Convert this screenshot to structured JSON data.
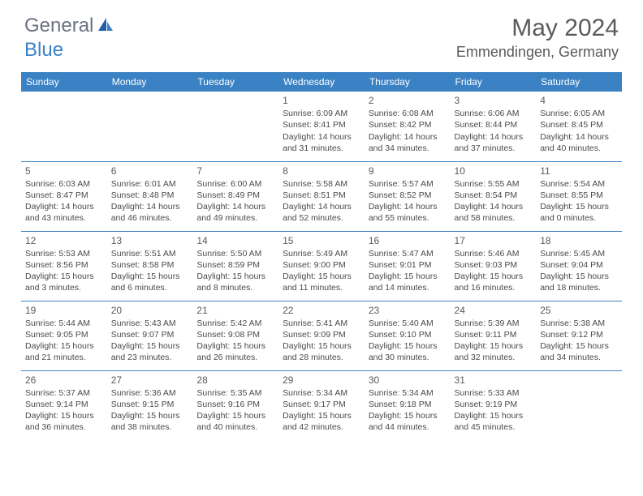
{
  "brand": {
    "part1": "General",
    "part2": "Blue"
  },
  "title": "May 2024",
  "location": "Emmendingen, Germany",
  "colors": {
    "header_bg": "#3b82c4",
    "header_text": "#ffffff",
    "border": "#3b82c4",
    "body_text": "#4a4a4a",
    "title_text": "#5a5a5a",
    "background": "#ffffff"
  },
  "weekdays": [
    "Sunday",
    "Monday",
    "Tuesday",
    "Wednesday",
    "Thursday",
    "Friday",
    "Saturday"
  ],
  "weeks": [
    [
      null,
      null,
      null,
      {
        "d": "1",
        "sr": "6:09 AM",
        "ss": "8:41 PM",
        "dl": "14 hours and 31 minutes."
      },
      {
        "d": "2",
        "sr": "6:08 AM",
        "ss": "8:42 PM",
        "dl": "14 hours and 34 minutes."
      },
      {
        "d": "3",
        "sr": "6:06 AM",
        "ss": "8:44 PM",
        "dl": "14 hours and 37 minutes."
      },
      {
        "d": "4",
        "sr": "6:05 AM",
        "ss": "8:45 PM",
        "dl": "14 hours and 40 minutes."
      }
    ],
    [
      {
        "d": "5",
        "sr": "6:03 AM",
        "ss": "8:47 PM",
        "dl": "14 hours and 43 minutes."
      },
      {
        "d": "6",
        "sr": "6:01 AM",
        "ss": "8:48 PM",
        "dl": "14 hours and 46 minutes."
      },
      {
        "d": "7",
        "sr": "6:00 AM",
        "ss": "8:49 PM",
        "dl": "14 hours and 49 minutes."
      },
      {
        "d": "8",
        "sr": "5:58 AM",
        "ss": "8:51 PM",
        "dl": "14 hours and 52 minutes."
      },
      {
        "d": "9",
        "sr": "5:57 AM",
        "ss": "8:52 PM",
        "dl": "14 hours and 55 minutes."
      },
      {
        "d": "10",
        "sr": "5:55 AM",
        "ss": "8:54 PM",
        "dl": "14 hours and 58 minutes."
      },
      {
        "d": "11",
        "sr": "5:54 AM",
        "ss": "8:55 PM",
        "dl": "15 hours and 0 minutes."
      }
    ],
    [
      {
        "d": "12",
        "sr": "5:53 AM",
        "ss": "8:56 PM",
        "dl": "15 hours and 3 minutes."
      },
      {
        "d": "13",
        "sr": "5:51 AM",
        "ss": "8:58 PM",
        "dl": "15 hours and 6 minutes."
      },
      {
        "d": "14",
        "sr": "5:50 AM",
        "ss": "8:59 PM",
        "dl": "15 hours and 8 minutes."
      },
      {
        "d": "15",
        "sr": "5:49 AM",
        "ss": "9:00 PM",
        "dl": "15 hours and 11 minutes."
      },
      {
        "d": "16",
        "sr": "5:47 AM",
        "ss": "9:01 PM",
        "dl": "15 hours and 14 minutes."
      },
      {
        "d": "17",
        "sr": "5:46 AM",
        "ss": "9:03 PM",
        "dl": "15 hours and 16 minutes."
      },
      {
        "d": "18",
        "sr": "5:45 AM",
        "ss": "9:04 PM",
        "dl": "15 hours and 18 minutes."
      }
    ],
    [
      {
        "d": "19",
        "sr": "5:44 AM",
        "ss": "9:05 PM",
        "dl": "15 hours and 21 minutes."
      },
      {
        "d": "20",
        "sr": "5:43 AM",
        "ss": "9:07 PM",
        "dl": "15 hours and 23 minutes."
      },
      {
        "d": "21",
        "sr": "5:42 AM",
        "ss": "9:08 PM",
        "dl": "15 hours and 26 minutes."
      },
      {
        "d": "22",
        "sr": "5:41 AM",
        "ss": "9:09 PM",
        "dl": "15 hours and 28 minutes."
      },
      {
        "d": "23",
        "sr": "5:40 AM",
        "ss": "9:10 PM",
        "dl": "15 hours and 30 minutes."
      },
      {
        "d": "24",
        "sr": "5:39 AM",
        "ss": "9:11 PM",
        "dl": "15 hours and 32 minutes."
      },
      {
        "d": "25",
        "sr": "5:38 AM",
        "ss": "9:12 PM",
        "dl": "15 hours and 34 minutes."
      }
    ],
    [
      {
        "d": "26",
        "sr": "5:37 AM",
        "ss": "9:14 PM",
        "dl": "15 hours and 36 minutes."
      },
      {
        "d": "27",
        "sr": "5:36 AM",
        "ss": "9:15 PM",
        "dl": "15 hours and 38 minutes."
      },
      {
        "d": "28",
        "sr": "5:35 AM",
        "ss": "9:16 PM",
        "dl": "15 hours and 40 minutes."
      },
      {
        "d": "29",
        "sr": "5:34 AM",
        "ss": "9:17 PM",
        "dl": "15 hours and 42 minutes."
      },
      {
        "d": "30",
        "sr": "5:34 AM",
        "ss": "9:18 PM",
        "dl": "15 hours and 44 minutes."
      },
      {
        "d": "31",
        "sr": "5:33 AM",
        "ss": "9:19 PM",
        "dl": "15 hours and 45 minutes."
      },
      null
    ]
  ],
  "labels": {
    "sunrise": "Sunrise:",
    "sunset": "Sunset:",
    "daylight": "Daylight:"
  }
}
